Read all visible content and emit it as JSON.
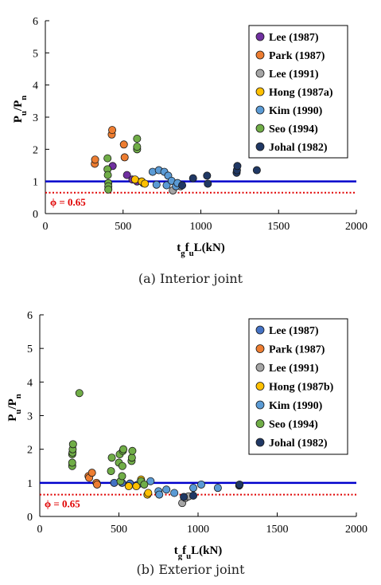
{
  "chart_data": [
    {
      "type": "scatter",
      "xlabel_parts": [
        [
          "t",
          ""
        ],
        [
          "g",
          "sub"
        ],
        [
          "f",
          ""
        ],
        [
          "u",
          "sub"
        ],
        [
          "L(kN)",
          ""
        ]
      ],
      "ylabel_parts": [
        [
          "P",
          ""
        ],
        [
          "u",
          "sub"
        ],
        [
          "/P",
          ""
        ],
        [
          "n",
          "sub"
        ]
      ],
      "xlim": [
        0,
        2000
      ],
      "ylim": [
        0,
        6
      ],
      "xticks": [
        "0",
        "500",
        "1000",
        "1500",
        "2000"
      ],
      "yticks": [
        "0",
        "1",
        "2",
        "3",
        "4",
        "5",
        "6"
      ],
      "grid": false,
      "legend_position": "top-right",
      "reference_lines": {
        "unity": 1.0,
        "phi": 0.65,
        "phi_label": "ϕ = 0.65"
      },
      "series": [
        {
          "name": "Lee (1987)",
          "color": "#7030a0",
          "points": [
            [
              433,
              1.48
            ],
            [
              525,
              1.2
            ],
            [
              560,
              1.06
            ],
            [
              590,
              1.0
            ]
          ]
        },
        {
          "name": "Park (1987)",
          "color": "#ed7d31",
          "points": [
            [
              318,
              1.55
            ],
            [
              320,
              1.68
            ],
            [
              427,
              2.46
            ],
            [
              430,
              2.6
            ],
            [
              505,
              2.15
            ],
            [
              510,
              1.75
            ]
          ]
        },
        {
          "name": "Lee (1991)",
          "color": "#a5a5a5",
          "points": [
            [
              630,
              0.95
            ],
            [
              820,
              0.72
            ],
            [
              870,
              0.85
            ]
          ]
        },
        {
          "name": "Hong (1987a)",
          "color": "#ffc000",
          "points": [
            [
              577,
              1.06
            ],
            [
              620,
              1.0
            ],
            [
              640,
              0.93
            ]
          ]
        },
        {
          "name": "Kim (1990)",
          "color": "#5b9bd5",
          "points": [
            [
              690,
              1.3
            ],
            [
              715,
              0.9
            ],
            [
              730,
              1.35
            ],
            [
              765,
              1.3
            ],
            [
              780,
              0.88
            ],
            [
              790,
              1.18
            ],
            [
              812,
              1.02
            ],
            [
              840,
              0.85
            ],
            [
              850,
              0.95
            ]
          ]
        },
        {
          "name": "Seo (1994)",
          "color": "#70ad47",
          "points": [
            [
              400,
              1.72
            ],
            [
              400,
              1.38
            ],
            [
              402,
              1.2
            ],
            [
              405,
              0.95
            ],
            [
              405,
              0.85
            ],
            [
              405,
              0.75
            ],
            [
              590,
              2.0
            ],
            [
              590,
              2.08
            ],
            [
              590,
              2.33
            ]
          ]
        },
        {
          "name": "Johal (1982)",
          "color": "#203864",
          "points": [
            [
              880,
              0.88
            ],
            [
              950,
              1.1
            ],
            [
              1040,
              1.18
            ],
            [
              1045,
              0.93
            ],
            [
              1230,
              1.27
            ],
            [
              1232,
              1.35
            ],
            [
              1235,
              1.48
            ],
            [
              1360,
              1.35
            ]
          ]
        }
      ]
    },
    {
      "type": "scatter",
      "xlabel_parts": [
        [
          "t",
          ""
        ],
        [
          "g",
          "sub"
        ],
        [
          "f",
          ""
        ],
        [
          "u",
          "sub"
        ],
        [
          "L(kN)",
          ""
        ]
      ],
      "ylabel_parts": [
        [
          "P",
          ""
        ],
        [
          "u",
          "sub"
        ],
        [
          "/P",
          ""
        ],
        [
          "n",
          "sub"
        ]
      ],
      "xlim": [
        0,
        2000
      ],
      "ylim": [
        0,
        6
      ],
      "xticks": [
        "0",
        "500",
        "1000",
        "1500",
        "2000"
      ],
      "yticks": [
        "0",
        "1",
        "2",
        "3",
        "4",
        "5",
        "6"
      ],
      "grid": false,
      "legend_position": "top-right",
      "reference_lines": {
        "unity": 1.0,
        "phi": 0.65,
        "phi_label": "ϕ = 0.65"
      },
      "series": [
        {
          "name": "Lee (1987)",
          "color": "#4472c4",
          "points": [
            [
              470,
              1.0
            ],
            [
              520,
              1.0
            ],
            [
              570,
              0.98
            ],
            [
              620,
              0.95
            ]
          ]
        },
        {
          "name": "Park (1987)",
          "color": "#ed7d31",
          "points": [
            [
              308,
              1.2
            ],
            [
              312,
              1.15
            ],
            [
              330,
              1.3
            ],
            [
              358,
              1.0
            ],
            [
              362,
              0.95
            ]
          ]
        },
        {
          "name": "Lee (1991)",
          "color": "#a5a5a5",
          "points": [
            [
              900,
              0.4
            ],
            [
              920,
              0.55
            ],
            [
              940,
              0.6
            ]
          ]
        },
        {
          "name": "Hong (1987b)",
          "color": "#ffc000",
          "points": [
            [
              562,
              0.9
            ],
            [
              610,
              0.9
            ],
            [
              640,
              1.1
            ],
            [
              680,
              0.65
            ],
            [
              685,
              0.7
            ]
          ]
        },
        {
          "name": "Kim (1990)",
          "color": "#5b9bd5",
          "points": [
            [
              700,
              1.05
            ],
            [
              750,
              0.75
            ],
            [
              755,
              0.65
            ],
            [
              800,
              0.8
            ],
            [
              850,
              0.7
            ],
            [
              970,
              0.85
            ],
            [
              1020,
              0.95
            ],
            [
              1125,
              0.85
            ]
          ]
        },
        {
          "name": "Seo (1994)",
          "color": "#70ad47",
          "points": [
            [
              205,
              1.5
            ],
            [
              205,
              1.6
            ],
            [
              205,
              1.85
            ],
            [
              207,
              1.9
            ],
            [
              208,
              2.0
            ],
            [
              210,
              2.15
            ],
            [
              250,
              3.67
            ],
            [
              450,
              1.35
            ],
            [
              455,
              1.75
            ],
            [
              500,
              1.6
            ],
            [
              505,
              1.85
            ],
            [
              510,
              1.05
            ],
            [
              520,
              1.2
            ],
            [
              522,
              1.5
            ],
            [
              525,
              1.95
            ],
            [
              528,
              2.0
            ],
            [
              580,
              1.65
            ],
            [
              582,
              1.75
            ],
            [
              585,
              1.95
            ],
            [
              640,
              1.05
            ],
            [
              660,
              0.95
            ]
          ]
        },
        {
          "name": "Johal (1982)",
          "color": "#203864",
          "points": [
            [
              910,
              0.58
            ],
            [
              970,
              0.62
            ],
            [
              1260,
              0.92
            ],
            [
              1262,
              0.95
            ]
          ]
        }
      ]
    }
  ],
  "captions": {
    "a": "(a) Interior joint",
    "b": "(b) Exterior joint"
  }
}
